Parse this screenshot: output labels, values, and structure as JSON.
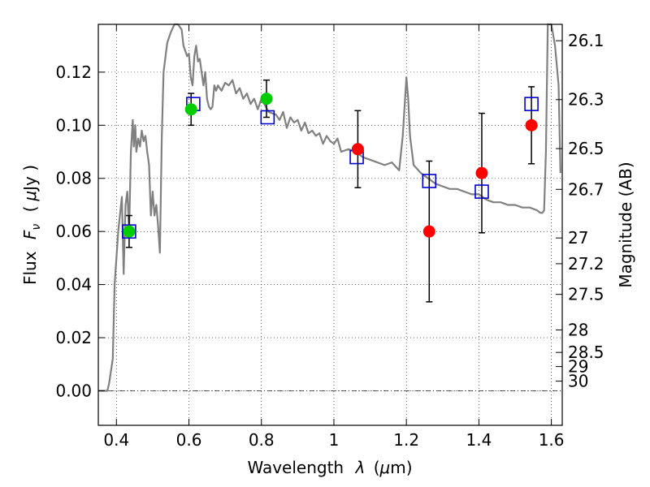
{
  "chart_data": {
    "type": "scatter",
    "xlabel_text": "Wavelength",
    "xlabel_symbol": "λ",
    "xlabel_unit_open": "(",
    "xlabel_unit_mu": "μ",
    "xlabel_unit_rest": "m)",
    "ylabel_text": "Flux",
    "ylabel_symbol": "F",
    "ylabel_subscript": "ν",
    "ylabel_unit_open": "(",
    "ylabel_unit_mu": "μ",
    "ylabel_unit_rest": "Jy )",
    "y2label": "Magnitude (AB)",
    "xlim": [
      0.35,
      1.63
    ],
    "ylim": [
      -0.013,
      0.138
    ],
    "x_ticks": [
      {
        "value": 0.4,
        "label": "0.4"
      },
      {
        "value": 0.6,
        "label": "0.6"
      },
      {
        "value": 0.8,
        "label": "0.8"
      },
      {
        "value": 1.0,
        "label": "1"
      },
      {
        "value": 1.2,
        "label": "1.2"
      },
      {
        "value": 1.4,
        "label": "1.4"
      },
      {
        "value": 1.6,
        "label": "1.6"
      }
    ],
    "y_ticks": [
      {
        "value": 0.0,
        "label": "0.00"
      },
      {
        "value": 0.02,
        "label": "0.02"
      },
      {
        "value": 0.04,
        "label": "0.04"
      },
      {
        "value": 0.06,
        "label": "0.06"
      },
      {
        "value": 0.08,
        "label": "0.08"
      },
      {
        "value": 0.1,
        "label": "0.10"
      },
      {
        "value": 0.12,
        "label": "0.12"
      }
    ],
    "mag_ticks": [
      {
        "value": 26.1,
        "label": "26.1"
      },
      {
        "value": 26.3,
        "label": "26.3"
      },
      {
        "value": 26.5,
        "label": "26.5"
      },
      {
        "value": 26.7,
        "label": "26.7"
      },
      {
        "value": 27.0,
        "label": "27"
      },
      {
        "value": 27.2,
        "label": "27.2"
      },
      {
        "value": 27.5,
        "label": "27.5"
      },
      {
        "value": 28.0,
        "label": "28"
      },
      {
        "value": 28.5,
        "label": "28.5"
      },
      {
        "value": 29.0,
        "label": "29"
      },
      {
        "value": 30.0,
        "label": "30"
      }
    ],
    "grid": true,
    "model_spectrum": {
      "color": "#808080",
      "x": [
        0.35,
        0.375,
        0.38,
        0.39,
        0.395,
        0.405,
        0.415,
        0.42,
        0.425,
        0.43,
        0.435,
        0.44,
        0.445,
        0.448,
        0.452,
        0.455,
        0.46,
        0.465,
        0.47,
        0.475,
        0.48,
        0.485,
        0.49,
        0.495,
        0.5,
        0.505,
        0.51,
        0.515,
        0.52,
        0.525,
        0.53,
        0.54,
        0.55,
        0.56,
        0.57,
        0.58,
        0.585,
        0.59,
        0.595,
        0.6,
        0.605,
        0.61,
        0.615,
        0.62,
        0.625,
        0.63,
        0.635,
        0.64,
        0.645,
        0.65,
        0.655,
        0.66,
        0.665,
        0.67,
        0.675,
        0.68,
        0.685,
        0.69,
        0.7,
        0.71,
        0.72,
        0.73,
        0.74,
        0.75,
        0.76,
        0.77,
        0.78,
        0.79,
        0.8,
        0.82,
        0.84,
        0.85,
        0.86,
        0.87,
        0.88,
        0.89,
        0.9,
        0.91,
        0.92,
        0.93,
        0.94,
        0.95,
        0.96,
        0.97,
        0.98,
        0.99,
        1.0,
        1.01,
        1.02,
        1.04,
        1.06,
        1.08,
        1.1,
        1.12,
        1.14,
        1.16,
        1.18,
        1.19,
        1.2,
        1.205,
        1.21,
        1.22,
        1.24,
        1.26,
        1.28,
        1.3,
        1.32,
        1.34,
        1.36,
        1.38,
        1.4,
        1.42,
        1.44,
        1.46,
        1.48,
        1.5,
        1.52,
        1.54,
        1.56,
        1.57,
        1.575,
        1.58,
        1.585,
        1.59,
        1.6,
        1.61,
        1.62,
        1.625
      ],
      "y": [
        0.0,
        0.0,
        0.003,
        0.012,
        0.04,
        0.06,
        0.073,
        0.044,
        0.07,
        0.075,
        0.06,
        0.09,
        0.102,
        0.092,
        0.1,
        0.09,
        0.095,
        0.092,
        0.098,
        0.094,
        0.096,
        0.09,
        0.085,
        0.066,
        0.075,
        0.066,
        0.07,
        0.062,
        0.052,
        0.095,
        0.12,
        0.131,
        0.135,
        0.14,
        0.142,
        0.136,
        0.13,
        0.128,
        0.126,
        0.127,
        0.118,
        0.115,
        0.126,
        0.13,
        0.124,
        0.125,
        0.12,
        0.115,
        0.12,
        0.11,
        0.107,
        0.106,
        0.107,
        0.115,
        0.113,
        0.115,
        0.114,
        0.113,
        0.116,
        0.115,
        0.117,
        0.112,
        0.114,
        0.11,
        0.112,
        0.108,
        0.11,
        0.106,
        0.11,
        0.105,
        0.104,
        0.102,
        0.105,
        0.099,
        0.103,
        0.101,
        0.102,
        0.098,
        0.101,
        0.097,
        0.098,
        0.096,
        0.097,
        0.093,
        0.096,
        0.094,
        0.093,
        0.095,
        0.09,
        0.091,
        0.09,
        0.088,
        0.087,
        0.086,
        0.085,
        0.086,
        0.083,
        0.096,
        0.118,
        0.11,
        0.096,
        0.085,
        0.082,
        0.08,
        0.078,
        0.077,
        0.076,
        0.076,
        0.075,
        0.074,
        0.074,
        0.072,
        0.071,
        0.071,
        0.07,
        0.07,
        0.069,
        0.069,
        0.068,
        0.067,
        0.067,
        0.068,
        0.09,
        0.14,
        0.14,
        0.13,
        0.115,
        0.082
      ]
    },
    "model_points": {
      "color": "#0000cc",
      "x": [
        0.435,
        0.612,
        0.817,
        1.063,
        1.263,
        1.408,
        1.545
      ],
      "y": [
        0.06,
        0.108,
        0.103,
        0.088,
        0.079,
        0.075,
        0.108
      ]
    },
    "observed_green": {
      "color": "#00cc00",
      "x": [
        0.435,
        0.606,
        0.814
      ],
      "y": [
        0.06,
        0.106,
        0.11
      ],
      "err": [
        0.006,
        0.006,
        0.007
      ]
    },
    "observed_red": {
      "color": "#ff0000",
      "x": [
        1.066,
        1.263,
        1.408,
        1.545
      ],
      "y": [
        0.091,
        0.06,
        0.082,
        0.1
      ],
      "err": [
        0.0145,
        0.0265,
        0.0225,
        0.0145
      ]
    }
  }
}
